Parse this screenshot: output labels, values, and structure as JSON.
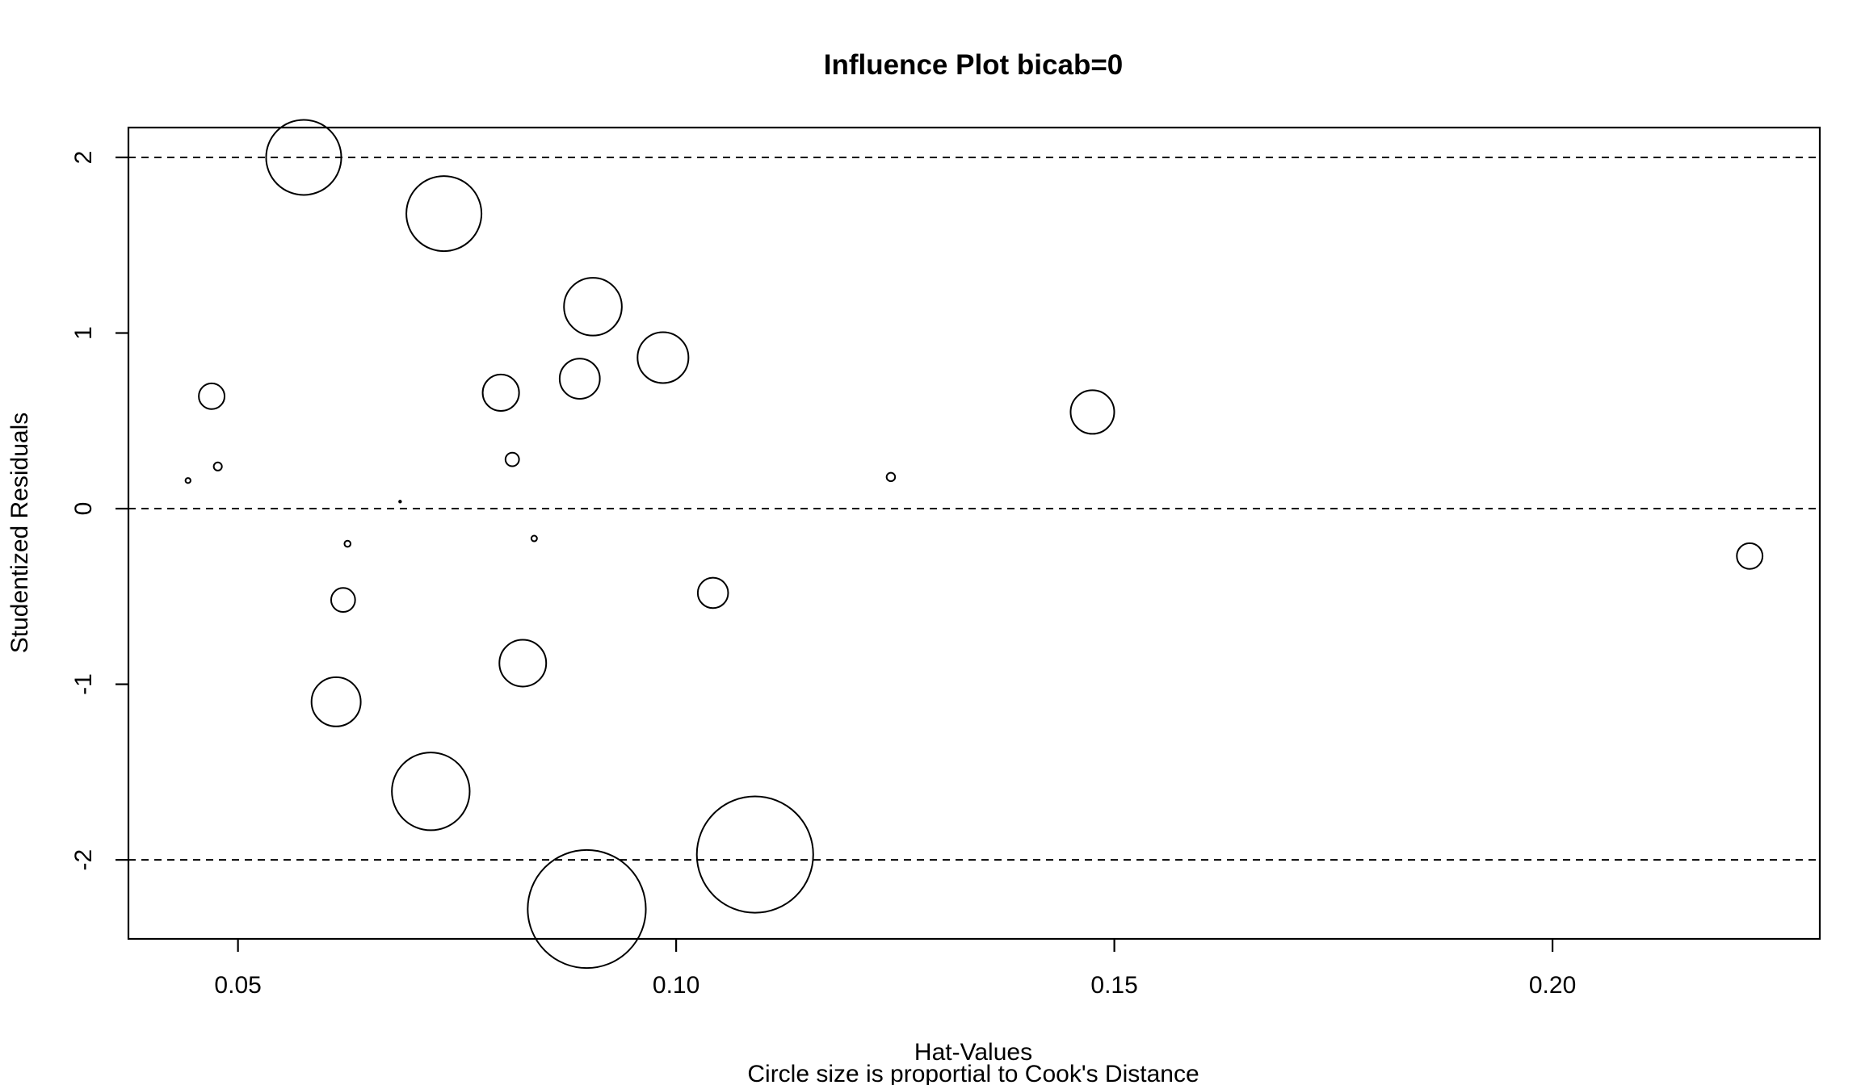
{
  "chart_data": {
    "type": "scatter",
    "title": "Influence Plot bicab=0",
    "xlabel": "Hat-Values",
    "subtitle": "Circle size is proportial to Cook's Distance",
    "ylabel": "Studentized Residuals",
    "xlim": [
      0.0375,
      0.2305
    ],
    "ylim": [
      -2.45,
      2.17
    ],
    "x_ticks": [
      0.05,
      0.1,
      0.15,
      0.2
    ],
    "x_tick_labels": [
      "0.05",
      "0.10",
      "0.15",
      "0.20"
    ],
    "y_ticks": [
      -2,
      -1,
      0,
      1,
      2
    ],
    "y_tick_labels": [
      "-2",
      "-1",
      "0",
      "1",
      "2"
    ],
    "reference_lines_y": [
      -2,
      0,
      2
    ],
    "grid": false,
    "points": [
      {
        "x": 0.0575,
        "y": 2.0,
        "size": 0.98
      },
      {
        "x": 0.0735,
        "y": 1.68,
        "size": 0.98
      },
      {
        "x": 0.0905,
        "y": 1.15,
        "size": 0.58
      },
      {
        "x": 0.0985,
        "y": 0.86,
        "size": 0.45
      },
      {
        "x": 0.089,
        "y": 0.74,
        "size": 0.28
      },
      {
        "x": 0.08,
        "y": 0.66,
        "size": 0.23
      },
      {
        "x": 0.047,
        "y": 0.64,
        "size": 0.115
      },
      {
        "x": 0.1475,
        "y": 0.55,
        "size": 0.33
      },
      {
        "x": 0.0813,
        "y": 0.28,
        "size": 0.032
      },
      {
        "x": 0.0477,
        "y": 0.24,
        "size": 0.0115
      },
      {
        "x": 0.0443,
        "y": 0.16,
        "size": 0.0045
      },
      {
        "x": 0.1245,
        "y": 0.18,
        "size": 0.0125
      },
      {
        "x": 0.0685,
        "y": 0.04,
        "size": 0.0003
      },
      {
        "x": 0.0838,
        "y": -0.17,
        "size": 0.0055
      },
      {
        "x": 0.0625,
        "y": -0.2,
        "size": 0.0065
      },
      {
        "x": 0.2225,
        "y": -0.27,
        "size": 0.115
      },
      {
        "x": 0.1042,
        "y": -0.48,
        "size": 0.16
      },
      {
        "x": 0.062,
        "y": -0.52,
        "size": 0.1
      },
      {
        "x": 0.0825,
        "y": -0.88,
        "size": 0.38
      },
      {
        "x": 0.0612,
        "y": -1.1,
        "size": 0.42
      },
      {
        "x": 0.072,
        "y": -1.61,
        "size": 1.05
      },
      {
        "x": 0.109,
        "y": -1.97,
        "size": 2.35
      },
      {
        "x": 0.0898,
        "y": -2.28,
        "size": 2.42
      }
    ]
  }
}
